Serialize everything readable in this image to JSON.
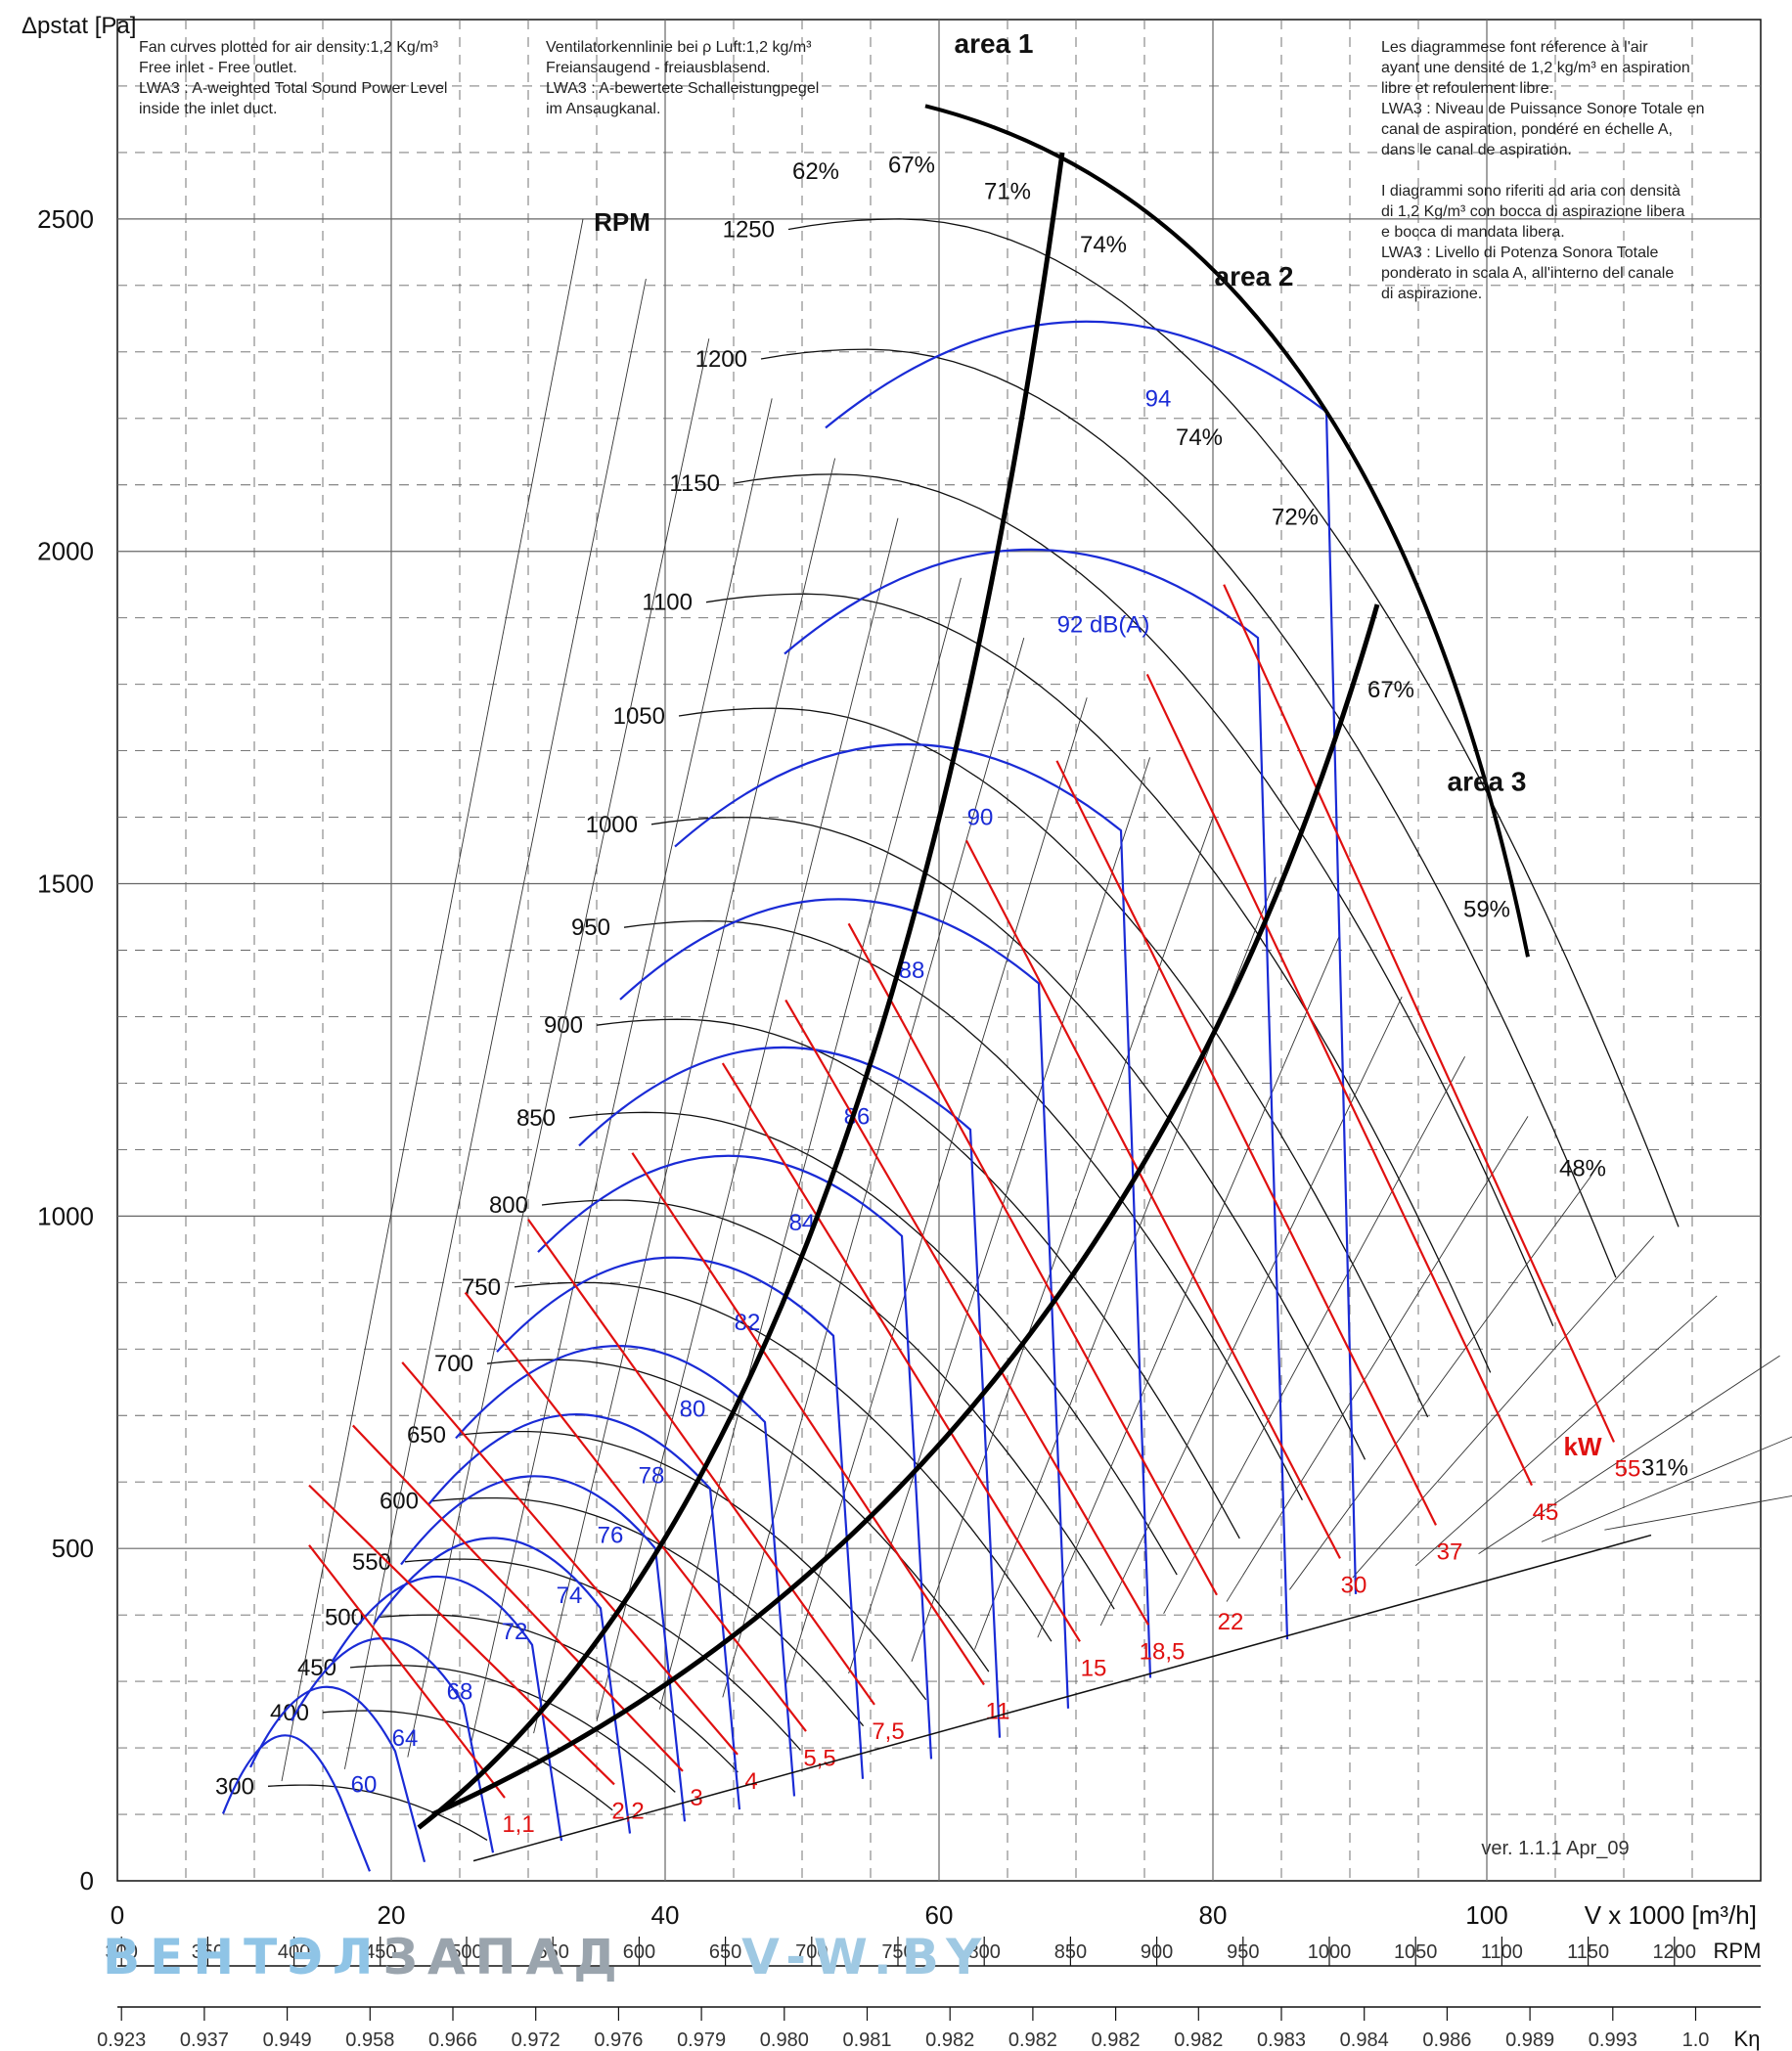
{
  "header": {
    "ylabel": "Δpstat\n[Pa]",
    "note_en": "Fan curves plotted for air density:1,2 Kg/m³\nFree inlet - Free outlet.\nLWA3 : A-weighted Total Sound Power Level\ninside the inlet duct.",
    "note_de": "Ventilatorkennlinie bei ρ Luft:1,2 kg/m³\nFreiansaugend - freiausblasend.\nLWA3 : A-bewertete Schalleistungpegel\nim Ansaugkanal.",
    "note_fr_it": "Les diagrammese font réference à l'air\nayant une densité de 1,2 kg/m³ en aspiration\nlibre et refoulement libre.\nLWA3 : Niveau de Puissance Sonore Totale en\ncanal de aspiration, pondéré en échelle A,\ndans le canal de aspiration.\n\nI diagrammi sono riferiti ad aria con densità\ndi 1,2 Kg/m³ con bocca di aspirazione libera\ne bocca di mandata libera.\nLWA3 : Livello di Potenza Sonora Totale\nponderato in scala A, all'interno del canale\ndi aspirazione.",
    "version": "ver. 1.1.1 Apr_09"
  },
  "watermark": {
    "part1": "ВЕНТЭЛ",
    "part2": "ЗАПАД",
    "part3": "V-W.BY"
  },
  "chart_data": {
    "type": "line",
    "xlabel": "V x 1000 [m³/h]",
    "ylabel": "Δpstat [Pa]",
    "xlim": [
      0,
      120
    ],
    "ylim": [
      0,
      2800
    ],
    "x_ticks": [
      0,
      20,
      40,
      60,
      80,
      100
    ],
    "y_ticks": [
      0,
      500,
      1000,
      1500,
      2000,
      2500
    ],
    "grid": true,
    "rpm_label": "RPM",
    "rpm_curves": [
      {
        "rpm": 300,
        "label": "300"
      },
      {
        "rpm": 400,
        "label": "400"
      },
      {
        "rpm": 450,
        "label": "450"
      },
      {
        "rpm": 500,
        "label": "500"
      },
      {
        "rpm": 550,
        "label": "550"
      },
      {
        "rpm": 600,
        "label": "600"
      },
      {
        "rpm": 650,
        "label": "650"
      },
      {
        "rpm": 700,
        "label": "700"
      },
      {
        "rpm": 750,
        "label": "750"
      },
      {
        "rpm": 800,
        "label": "800"
      },
      {
        "rpm": 850,
        "label": "850"
      },
      {
        "rpm": 900,
        "label": "900"
      },
      {
        "rpm": 950,
        "label": "950"
      },
      {
        "rpm": 1000,
        "label": "1000"
      },
      {
        "rpm": 1050,
        "label": "1050"
      },
      {
        "rpm": 1100,
        "label": "1100"
      },
      {
        "rpm": 1150,
        "label": "1150"
      },
      {
        "rpm": 1200,
        "label": "1200"
      },
      {
        "rpm": 1250,
        "label": "1250"
      }
    ],
    "efficiency_labels": [
      {
        "label": "62%",
        "x": 51,
        "y": 2560
      },
      {
        "label": "67%",
        "x": 58,
        "y": 2570
      },
      {
        "label": "71%",
        "x": 65,
        "y": 2530
      },
      {
        "label": "74%",
        "x": 72,
        "y": 2450
      },
      {
        "label": "74%",
        "x": 79,
        "y": 2160
      },
      {
        "label": "72%",
        "x": 86,
        "y": 2040
      },
      {
        "label": "67%",
        "x": 93,
        "y": 1780
      },
      {
        "label": "59%",
        "x": 100,
        "y": 1450
      },
      {
        "label": "48%",
        "x": 107,
        "y": 1060
      },
      {
        "label": "31%",
        "x": 113,
        "y": 610
      }
    ],
    "sound_labels": [
      {
        "label": "60",
        "x": 18,
        "y": 145
      },
      {
        "label": "64",
        "x": 21,
        "y": 215
      },
      {
        "label": "68",
        "x": 25,
        "y": 285
      },
      {
        "label": "72",
        "x": 29,
        "y": 375
      },
      {
        "label": "74",
        "x": 33,
        "y": 430
      },
      {
        "label": "76",
        "x": 36,
        "y": 520
      },
      {
        "label": "78",
        "x": 39,
        "y": 610
      },
      {
        "label": "80",
        "x": 42,
        "y": 710
      },
      {
        "label": "82",
        "x": 46,
        "y": 840
      },
      {
        "label": "84",
        "x": 50,
        "y": 990
      },
      {
        "label": "86",
        "x": 54,
        "y": 1150
      },
      {
        "label": "88",
        "x": 58,
        "y": 1370
      },
      {
        "label": "90",
        "x": 63,
        "y": 1600
      },
      {
        "label": "92 dB(A)",
        "x": 72,
        "y": 1890
      },
      {
        "label": "94",
        "x": 76,
        "y": 2230
      }
    ],
    "power_label": "kW",
    "power_labels": [
      {
        "label": "1,1",
        "x": 29,
        "y": 85
      },
      {
        "label": "2,2",
        "x": 37,
        "y": 105
      },
      {
        "label": "3",
        "x": 42,
        "y": 125
      },
      {
        "label": "4",
        "x": 46,
        "y": 150
      },
      {
        "label": "5,5",
        "x": 51,
        "y": 185
      },
      {
        "label": "7,5",
        "x": 56,
        "y": 225
      },
      {
        "label": "11",
        "x": 64,
        "y": 255
      },
      {
        "label": "15",
        "x": 71,
        "y": 320
      },
      {
        "label": "18,5",
        "x": 76,
        "y": 345
      },
      {
        "label": "22",
        "x": 81,
        "y": 390
      },
      {
        "label": "30",
        "x": 90,
        "y": 445
      },
      {
        "label": "37",
        "x": 97,
        "y": 495
      },
      {
        "label": "45",
        "x": 104,
        "y": 555
      },
      {
        "label": "55",
        "x": 110,
        "y": 620
      }
    ],
    "areas": [
      {
        "label": "area 1",
        "x": 64,
        "y": 2750
      },
      {
        "label": "area 2",
        "x": 83,
        "y": 2400
      },
      {
        "label": "area 3",
        "x": 100,
        "y": 1640
      }
    ],
    "rpm_axis": {
      "label": "RPM",
      "ticks": [
        "300",
        "350",
        "400",
        "450",
        "500",
        "550",
        "600",
        "650",
        "700",
        "750",
        "800",
        "850",
        "900",
        "950",
        "1000",
        "1050",
        "1100",
        "1150",
        "1200"
      ]
    },
    "keta_axis": {
      "label": "Kη",
      "ticks": [
        "0.923",
        "0.937",
        "0.949",
        "0.958",
        "0.966",
        "0.972",
        "0.976",
        "0.979",
        "0.980",
        "0.981",
        "0.982",
        "0.982",
        "0.982",
        "0.982",
        "0.983",
        "0.984",
        "0.986",
        "0.989",
        "0.993",
        "1.0"
      ]
    },
    "colors": {
      "rpm": "#111111",
      "sound": "#1a2bd6",
      "power": "#e01010",
      "grid": "#666666"
    }
  }
}
